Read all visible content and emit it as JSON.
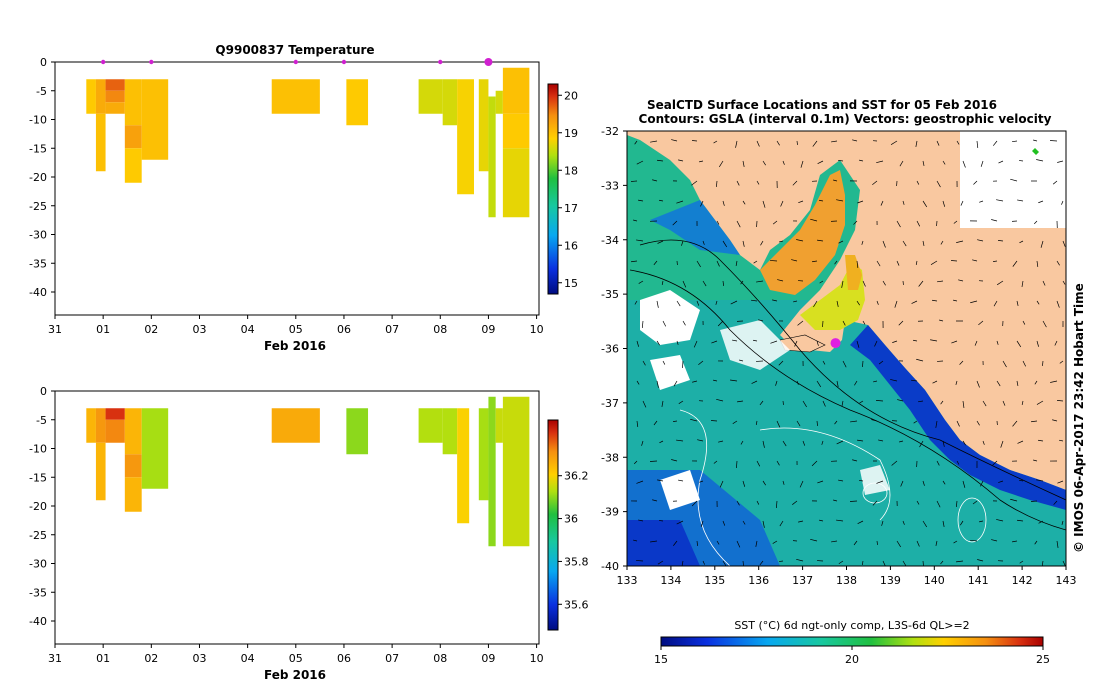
{
  "chart_data": [
    {
      "type": "heatmap",
      "title": "Q9900837  Temperature",
      "xlabel": "Feb 2016",
      "x_tick_labels": [
        "31",
        "01",
        "02",
        "03",
        "04",
        "05",
        "06",
        "07",
        "08",
        "09",
        "10"
      ],
      "y_tick_labels": [
        "0",
        "-5",
        "-10",
        "-15",
        "-20",
        "-25",
        "-30",
        "-35",
        "-40"
      ],
      "ylim": [
        -44,
        0
      ],
      "xlim_days": [
        0,
        10.05
      ],
      "profile_markers_days": [
        1.0,
        2.0,
        5.0,
        6.0,
        8.0,
        9.0
      ],
      "colorbar": {
        "min": 14.7,
        "max": 20.3,
        "ticks": [
          "20",
          "19",
          "18",
          "17",
          "16",
          "15"
        ]
      },
      "cells": [
        {
          "x0": 0.65,
          "x1": 0.85,
          "z0": -3,
          "z1": -9,
          "v": 18.9
        },
        {
          "x0": 0.85,
          "x1": 1.05,
          "z0": -3,
          "z1": -9,
          "v": 19.2
        },
        {
          "x0": 0.85,
          "x1": 1.05,
          "z0": -9,
          "z1": -19,
          "v": 19.0
        },
        {
          "x0": 1.05,
          "x1": 1.45,
          "z0": -3,
          "z1": -5,
          "v": 19.7
        },
        {
          "x0": 1.05,
          "x1": 1.45,
          "z0": -5,
          "z1": -7,
          "v": 19.5
        },
        {
          "x0": 1.05,
          "x1": 1.45,
          "z0": -7,
          "z1": -9,
          "v": 19.2
        },
        {
          "x0": 1.45,
          "x1": 1.8,
          "z0": -3,
          "z1": -11,
          "v": 19.0
        },
        {
          "x0": 1.45,
          "x1": 1.8,
          "z0": -11,
          "z1": -15,
          "v": 19.3
        },
        {
          "x0": 1.45,
          "x1": 1.8,
          "z0": -15,
          "z1": -21,
          "v": 18.9
        },
        {
          "x0": 1.8,
          "x1": 2.35,
          "z0": -3,
          "z1": -17,
          "v": 19.0
        },
        {
          "x0": 4.5,
          "x1": 5.5,
          "z0": -3,
          "z1": -9,
          "v": 19.0
        },
        {
          "x0": 6.05,
          "x1": 6.5,
          "z0": -3,
          "z1": -11,
          "v": 18.9
        },
        {
          "x0": 7.55,
          "x1": 8.05,
          "z0": -3,
          "z1": -9,
          "v": 18.6
        },
        {
          "x0": 8.05,
          "x1": 8.35,
          "z0": -3,
          "z1": -11,
          "v": 18.6
        },
        {
          "x0": 8.35,
          "x1": 8.7,
          "z0": -3,
          "z1": -23,
          "v": 18.8
        },
        {
          "x0": 8.8,
          "x1": 9.0,
          "z0": -3,
          "z1": -19,
          "v": 18.7
        },
        {
          "x0": 9.0,
          "x1": 9.15,
          "z0": -6,
          "z1": -27,
          "v": 18.5
        },
        {
          "x0": 9.15,
          "x1": 9.3,
          "z0": -5,
          "z1": -9,
          "v": 18.6
        },
        {
          "x0": 9.3,
          "x1": 9.85,
          "z0": -1,
          "z1": -9,
          "v": 19.0
        },
        {
          "x0": 9.3,
          "x1": 9.85,
          "z0": -9,
          "z1": -15,
          "v": 18.9
        },
        {
          "x0": 9.3,
          "x1": 9.85,
          "z0": -15,
          "z1": -27,
          "v": 18.7
        }
      ]
    },
    {
      "type": "heatmap",
      "title": "",
      "xlabel": "Feb 2016",
      "x_tick_labels": [
        "31",
        "01",
        "02",
        "03",
        "04",
        "05",
        "06",
        "07",
        "08",
        "09",
        "10"
      ],
      "y_tick_labels": [
        "0",
        "-5",
        "-10",
        "-15",
        "-20",
        "-25",
        "-30",
        "-35",
        "-40"
      ],
      "ylim": [
        -44,
        0
      ],
      "xlim_days": [
        0,
        10.05
      ],
      "colorbar": {
        "min": 35.48,
        "max": 36.46,
        "ticks": [
          "36.2",
          "36",
          "35.8",
          "35.6"
        ]
      },
      "cells": [
        {
          "x0": 0.65,
          "x1": 0.85,
          "z0": -3,
          "z1": -9,
          "v": 36.25
        },
        {
          "x0": 0.85,
          "x1": 1.05,
          "z0": -3,
          "z1": -9,
          "v": 36.3
        },
        {
          "x0": 0.85,
          "x1": 1.05,
          "z0": -9,
          "z1": -19,
          "v": 36.25
        },
        {
          "x0": 1.05,
          "x1": 1.45,
          "z0": -3,
          "z1": -5,
          "v": 36.4
        },
        {
          "x0": 1.05,
          "x1": 1.45,
          "z0": -5,
          "z1": -9,
          "v": 36.32
        },
        {
          "x0": 1.45,
          "x1": 1.8,
          "z0": -3,
          "z1": -11,
          "v": 36.25
        },
        {
          "x0": 1.45,
          "x1": 1.8,
          "z0": -11,
          "z1": -15,
          "v": 36.3
        },
        {
          "x0": 1.45,
          "x1": 1.8,
          "z0": -15,
          "z1": -21,
          "v": 36.25
        },
        {
          "x0": 1.8,
          "x1": 2.35,
          "z0": -3,
          "z1": -17,
          "v": 36.12
        },
        {
          "x0": 4.5,
          "x1": 5.5,
          "z0": -3,
          "z1": -9,
          "v": 36.27
        },
        {
          "x0": 6.05,
          "x1": 6.5,
          "z0": -3,
          "z1": -11,
          "v": 36.1
        },
        {
          "x0": 7.55,
          "x1": 8.05,
          "z0": -3,
          "z1": -9,
          "v": 36.13
        },
        {
          "x0": 8.05,
          "x1": 8.35,
          "z0": -3,
          "z1": -11,
          "v": 36.13
        },
        {
          "x0": 8.35,
          "x1": 8.6,
          "z0": -3,
          "z1": -23,
          "v": 36.2
        },
        {
          "x0": 8.8,
          "x1": 9.0,
          "z0": -3,
          "z1": -19,
          "v": 36.12
        },
        {
          "x0": 9.0,
          "x1": 9.15,
          "z0": -1,
          "z1": -27,
          "v": 36.1
        },
        {
          "x0": 9.15,
          "x1": 9.3,
          "z0": -3,
          "z1": -9,
          "v": 36.15
        },
        {
          "x0": 9.3,
          "x1": 9.85,
          "z0": -1,
          "z1": -27,
          "v": 36.15
        }
      ]
    },
    {
      "type": "map",
      "title_line1": "SealCTD Surface Locations and SST for 05 Feb 2016",
      "title_line2": "Contours: GSLA (interval 0.1m) Vectors: geostrophic velocity",
      "lon_tick_labels": [
        "133",
        "134",
        "135",
        "136",
        "137",
        "138",
        "139",
        "140",
        "141",
        "142",
        "143"
      ],
      "lat_tick_labels": [
        "-32",
        "-33",
        "-34",
        "-35",
        "-36",
        "-37",
        "-38",
        "-39",
        "-40"
      ],
      "lon_range": [
        133,
        143
      ],
      "lat_range": [
        -40,
        -32
      ],
      "colorbar_label": "SST (°C) 6d ngt-only comp, L3S-6d QL>=2",
      "colorbar_ticks": [
        "15",
        "20",
        "25"
      ],
      "colorbar_range": [
        15,
        25
      ],
      "sealctd_location": {
        "lon": 137.75,
        "lat": -35.9
      },
      "side_label": "© IMOS 06-Apr-2017 23:42 Hobart Time"
    }
  ]
}
